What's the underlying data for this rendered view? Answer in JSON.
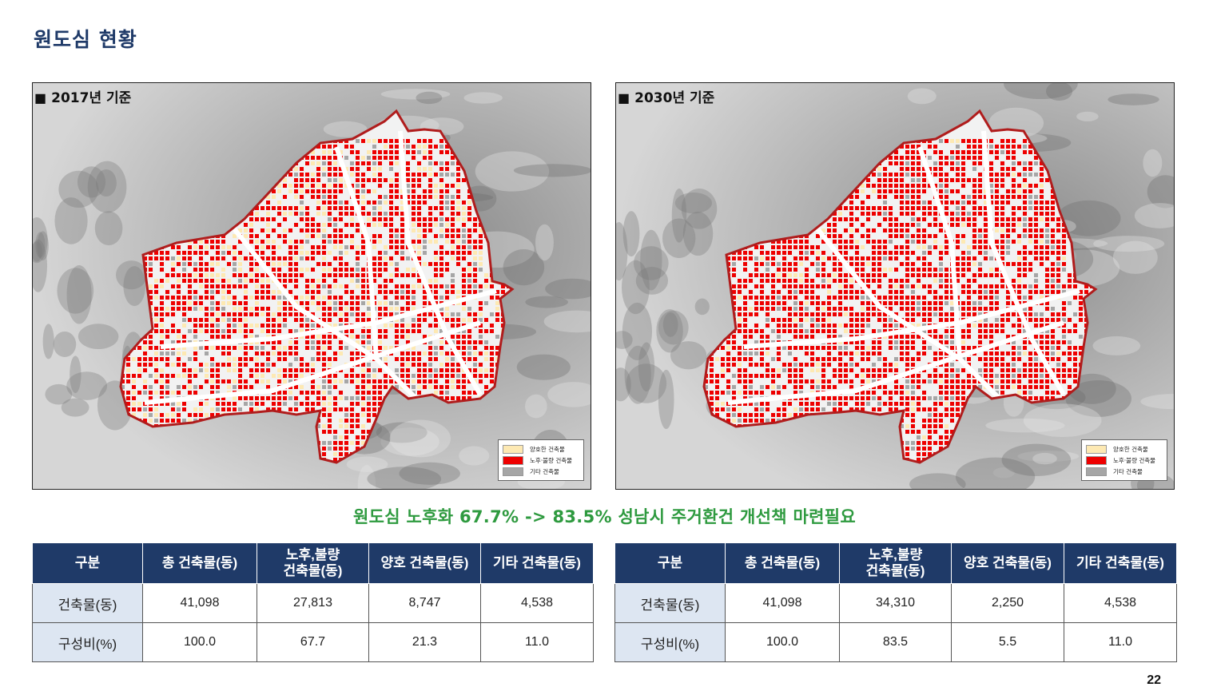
{
  "page": {
    "title": "원도심 현황",
    "number": "22"
  },
  "maps": [
    {
      "label": "2017년 기준",
      "bullet": "■",
      "legend": [
        {
          "label": "양호한 건축물",
          "color": "#fde9b3"
        },
        {
          "label": "노후·불량 건축물",
          "color": "#ee0000"
        },
        {
          "label": "기타 건축물",
          "color": "#a6a6a6"
        }
      ]
    },
    {
      "label": "2030년 기준",
      "bullet": "■",
      "legend": [
        {
          "label": "양호한 건축물",
          "color": "#fde9b3"
        },
        {
          "label": "노후·불량 건축물",
          "color": "#ee0000"
        },
        {
          "label": "기타 건축물",
          "color": "#a6a6a6"
        }
      ]
    }
  ],
  "summary": "원도심 노후화 67.7% -> 83.5% 성남시 주거환건 개선책 마련필요",
  "tables": [
    {
      "headers": [
        "구분",
        "총 건축물(동)",
        "노후,불량\n건축물(동)",
        "양호 건축물(동)",
        "기타 건축물(동)"
      ],
      "rows": [
        [
          "건축물(동)",
          "41,098",
          "27,813",
          "8,747",
          "4,538"
        ],
        [
          "구성비(%)",
          "100.0",
          "67.7",
          "21.3",
          "11.0"
        ]
      ]
    },
    {
      "headers": [
        "구분",
        "총 건축물(동)",
        "노후,불량\n건축물(동)",
        "양호 건축물(동)",
        "기타 건축물(동)"
      ],
      "rows": [
        [
          "건축물(동)",
          "41,098",
          "34,310",
          "2,250",
          "4,538"
        ],
        [
          "구성비(%)",
          "100.0",
          "83.5",
          "5.5",
          "11.0"
        ]
      ]
    }
  ],
  "colors": {
    "header_bg": "#1f3a68",
    "row_header_bg": "#dde6f2",
    "summary_text": "#2e9a3f",
    "boundary": "#b01c1c",
    "deteriorated": "#ee0000",
    "good": "#fde9b3",
    "other": "#a6a6a6"
  },
  "map_stats": [
    {
      "deteriorated_share": 0.677,
      "good_share": 0.213,
      "other_share": 0.11
    },
    {
      "deteriorated_share": 0.835,
      "good_share": 0.055,
      "other_share": 0.11
    }
  ]
}
